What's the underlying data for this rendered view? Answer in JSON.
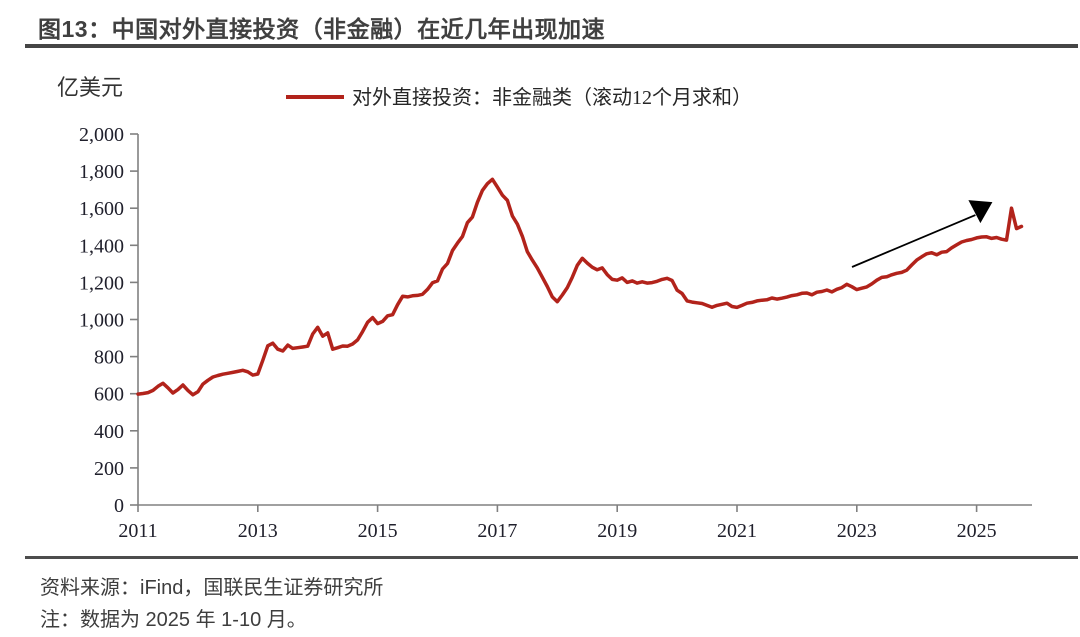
{
  "figure": {
    "title": "图13：中国对外直接投资（非金融）在近几年出现加速"
  },
  "chart_data": {
    "type": "line",
    "title": "图13：中国对外直接投资（非金融）在近几年出现加速",
    "unit_label": "亿美元",
    "xlabel": "",
    "ylabel": "亿美元",
    "ylim": [
      0,
      2000
    ],
    "y_ticks": [
      0,
      200,
      400,
      600,
      800,
      1000,
      1200,
      1400,
      1600,
      1800,
      2000
    ],
    "x_tick_labels": [
      "2011",
      "2013",
      "2015",
      "2017",
      "2019",
      "2021",
      "2023",
      "2025"
    ],
    "x_start": "2011-01",
    "x_end": "2025-10",
    "frequency": "monthly",
    "grid": "off",
    "legend_position": "top-center",
    "series": [
      {
        "name": "对外直接投资：非金融类（滚动12个月求和）",
        "color": "#B2231B",
        "values": [
          598,
          601,
          606,
          618,
          640,
          656,
          632,
          604,
          622,
          647,
          618,
          594,
          610,
          652,
          672,
          690,
          698,
          705,
          710,
          715,
          720,
          726,
          718,
          700,
          706,
          780,
          858,
          872,
          840,
          830,
          862,
          844,
          848,
          852,
          856,
          922,
          958,
          910,
          928,
          840,
          848,
          857,
          856,
          868,
          890,
          935,
          985,
          1010,
          978,
          990,
          1020,
          1026,
          1080,
          1125,
          1122,
          1128,
          1130,
          1136,
          1162,
          1198,
          1208,
          1272,
          1302,
          1372,
          1412,
          1448,
          1522,
          1552,
          1632,
          1696,
          1732,
          1756,
          1714,
          1670,
          1642,
          1558,
          1514,
          1448,
          1366,
          1320,
          1278,
          1228,
          1178,
          1122,
          1096,
          1132,
          1172,
          1228,
          1292,
          1330,
          1304,
          1282,
          1268,
          1278,
          1242,
          1216,
          1212,
          1224,
          1200,
          1208,
          1196,
          1203,
          1196,
          1199,
          1206,
          1216,
          1222,
          1210,
          1158,
          1140,
          1100,
          1094,
          1090,
          1086,
          1076,
          1066,
          1076,
          1082,
          1088,
          1070,
          1065,
          1076,
          1088,
          1092,
          1100,
          1104,
          1106,
          1116,
          1110,
          1115,
          1121,
          1129,
          1133,
          1141,
          1143,
          1133,
          1147,
          1151,
          1159,
          1149,
          1163,
          1172,
          1190,
          1177,
          1161,
          1169,
          1176,
          1192,
          1212,
          1227,
          1230,
          1241,
          1249,
          1254,
          1266,
          1294,
          1320,
          1338,
          1354,
          1360,
          1349,
          1363,
          1366,
          1386,
          1402,
          1418,
          1426,
          1431,
          1440,
          1445,
          1446,
          1437,
          1442,
          1433,
          1428,
          1600,
          1490,
          1502
        ]
      }
    ],
    "annotation_arrow": {
      "from": [
        2022.92,
        1283
      ],
      "to": [
        2025.08,
        1590
      ],
      "color": "#000000"
    }
  },
  "colors": {
    "series_red": "#B2231B",
    "axis_gray": "#808080",
    "label_dark": "#20202c",
    "rule_dark": "#454545"
  },
  "footer": {
    "source": "资料来源：iFind，国联民生证券研究所",
    "note": "注：数据为 2025 年 1-10 月。"
  }
}
